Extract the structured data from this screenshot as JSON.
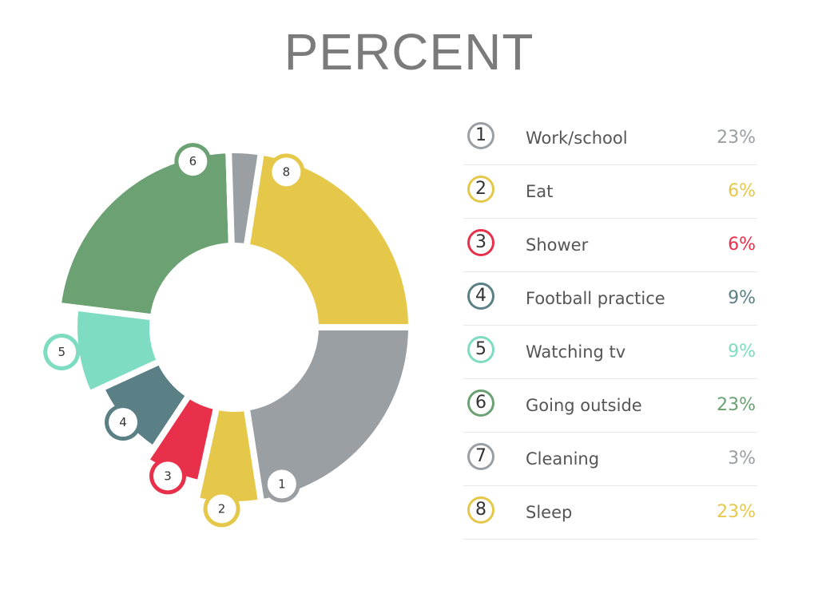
{
  "chart_data": {
    "type": "pie",
    "title": "PERCENT",
    "categories": [
      "Work/school",
      "Eat",
      "Shower",
      "Football practice",
      "Watching tv",
      "Going outside",
      "Cleaning",
      "Sleep"
    ],
    "values": [
      23,
      6,
      6,
      9,
      9,
      23,
      3,
      23
    ],
    "value_labels": [
      "23%",
      "6%",
      "6%",
      "9%",
      "9%",
      "23%",
      "3%",
      "23%"
    ],
    "numbers": [
      "1",
      "2",
      "3",
      "4",
      "5",
      "6",
      "7",
      "8"
    ],
    "colors": [
      "#999fa3",
      "#e5c84a",
      "#e8304b",
      "#5a7f85",
      "#7ddcc1",
      "#6ba173",
      "#999fa3",
      "#e5c84a"
    ],
    "legend_placement": "right"
  }
}
